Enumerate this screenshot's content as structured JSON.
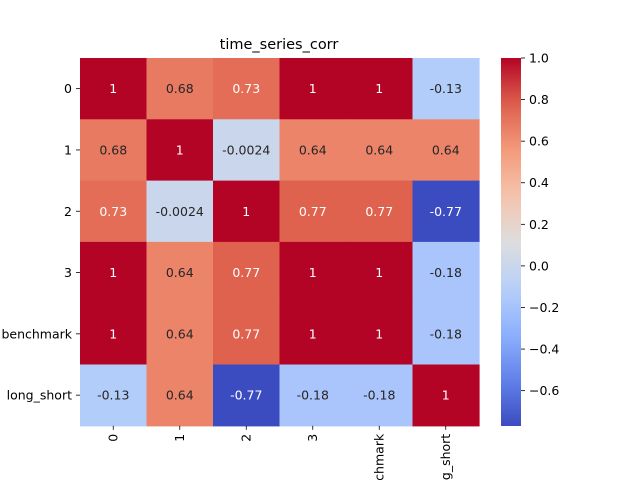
{
  "chart_data": {
    "type": "heatmap",
    "title": "time_series_corr",
    "xlabel": "",
    "ylabel": "",
    "row_labels": [
      "0",
      "1",
      "2",
      "3",
      "benchmark",
      "long_short"
    ],
    "col_labels": [
      "0",
      "1",
      "2",
      "3",
      "benchmark",
      "long_short"
    ],
    "values": [
      [
        1,
        0.68,
        0.73,
        1,
        1,
        -0.13
      ],
      [
        0.68,
        1,
        -0.0024,
        0.64,
        0.64,
        0.64
      ],
      [
        0.73,
        -0.0024,
        1,
        0.77,
        0.77,
        -0.77
      ],
      [
        1,
        0.64,
        0.77,
        1,
        1,
        -0.18
      ],
      [
        1,
        0.64,
        0.77,
        1,
        1,
        -0.18
      ],
      [
        -0.13,
        0.64,
        -0.77,
        -0.18,
        -0.18,
        1
      ]
    ],
    "annotations": [
      [
        "1",
        "0.68",
        "0.73",
        "1",
        "1",
        "-0.13"
      ],
      [
        "0.68",
        "1",
        "-0.0024",
        "0.64",
        "0.64",
        "0.64"
      ],
      [
        "0.73",
        "-0.0024",
        "1",
        "0.77",
        "0.77",
        "-0.77"
      ],
      [
        "1",
        "0.64",
        "0.77",
        "1",
        "1",
        "-0.18"
      ],
      [
        "1",
        "0.64",
        "0.77",
        "1",
        "1",
        "-0.18"
      ],
      [
        "-0.13",
        "0.64",
        "-0.77",
        "-0.18",
        "-0.18",
        "1"
      ]
    ],
    "colormap": "coolwarm",
    "color_range": [
      -0.77,
      1.0
    ],
    "colorbar_ticks": [
      1.0,
      0.8,
      0.6,
      0.4,
      0.2,
      0.0,
      -0.2,
      -0.4,
      -0.6
    ],
    "colorbar_tick_labels": [
      "1.0",
      "0.8",
      "0.6",
      "0.4",
      "0.2",
      "0.0",
      "−0.2",
      "−0.4",
      "−0.6"
    ],
    "grid": false,
    "colorbar_placement": "right"
  }
}
